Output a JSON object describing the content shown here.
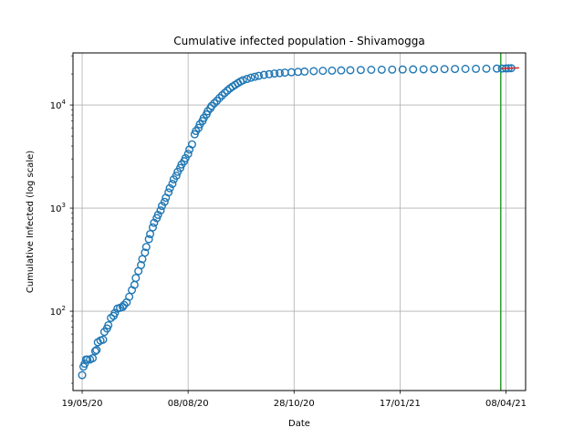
{
  "chart_data": {
    "type": "scatter",
    "title": "Cumulative infected population - Shivamogga",
    "xlabel": "Date",
    "ylabel": "Cumulative Infected (log scale)",
    "y_scale": "log",
    "ylim": [
      17,
      32000
    ],
    "xlim": [
      "2020-05-12",
      "2021-04-23"
    ],
    "grid": true,
    "x_ticks": [
      {
        "date": "2020-05-19",
        "label": "19/05/20"
      },
      {
        "date": "2020-08-08",
        "label": "08/08/20"
      },
      {
        "date": "2020-10-28",
        "label": "28/10/20"
      },
      {
        "date": "2021-01-17",
        "label": "17/01/21"
      },
      {
        "date": "2021-04-08",
        "label": "08/04/21"
      }
    ],
    "y_ticks": [
      {
        "value": 100,
        "label": "10",
        "exp": "2"
      },
      {
        "value": 1000,
        "label": "10",
        "exp": "3"
      },
      {
        "value": 10000,
        "label": "10",
        "exp": "4"
      }
    ],
    "series": [
      {
        "style": "open-circle",
        "color": "#1f77b4",
        "points": [
          [
            "2020-05-19",
            24
          ],
          [
            "2020-05-20",
            29
          ],
          [
            "2020-05-21",
            31
          ],
          [
            "2020-05-22",
            34
          ],
          [
            "2020-05-23",
            34
          ],
          [
            "2020-05-25",
            34
          ],
          [
            "2020-05-27",
            35
          ],
          [
            "2020-05-29",
            41
          ],
          [
            "2020-05-30",
            42
          ],
          [
            "2020-05-31",
            50
          ],
          [
            "2020-06-02",
            52
          ],
          [
            "2020-06-04",
            53
          ],
          [
            "2020-06-05",
            63
          ],
          [
            "2020-06-07",
            68
          ],
          [
            "2020-06-08",
            73
          ],
          [
            "2020-06-10",
            86
          ],
          [
            "2020-06-12",
            90
          ],
          [
            "2020-06-13",
            96
          ],
          [
            "2020-06-15",
            106
          ],
          [
            "2020-06-17",
            108
          ],
          [
            "2020-06-19",
            110
          ],
          [
            "2020-06-20",
            115
          ],
          [
            "2020-06-22",
            122
          ],
          [
            "2020-06-24",
            138
          ],
          [
            "2020-06-26",
            160
          ],
          [
            "2020-06-28",
            180
          ],
          [
            "2020-06-29",
            210
          ],
          [
            "2020-07-01",
            245
          ],
          [
            "2020-07-03",
            280
          ],
          [
            "2020-07-04",
            320
          ],
          [
            "2020-07-06",
            370
          ],
          [
            "2020-07-07",
            420
          ],
          [
            "2020-07-09",
            500
          ],
          [
            "2020-07-10",
            560
          ],
          [
            "2020-07-12",
            650
          ],
          [
            "2020-07-13",
            720
          ],
          [
            "2020-07-15",
            800
          ],
          [
            "2020-07-16",
            860
          ],
          [
            "2020-07-18",
            950
          ],
          [
            "2020-07-19",
            1050
          ],
          [
            "2020-07-21",
            1150
          ],
          [
            "2020-07-22",
            1260
          ],
          [
            "2020-07-24",
            1420
          ],
          [
            "2020-07-25",
            1560
          ],
          [
            "2020-07-27",
            1720
          ],
          [
            "2020-07-28",
            1900
          ],
          [
            "2020-07-30",
            2060
          ],
          [
            "2020-07-31",
            2250
          ],
          [
            "2020-08-02",
            2450
          ],
          [
            "2020-08-03",
            2650
          ],
          [
            "2020-08-05",
            2850
          ],
          [
            "2020-08-06",
            3050
          ],
          [
            "2020-08-08",
            3350
          ],
          [
            "2020-08-09",
            3700
          ],
          [
            "2020-08-11",
            4150
          ],
          [
            "2020-08-13",
            5200
          ],
          [
            "2020-08-14",
            5600
          ],
          [
            "2020-08-16",
            6000
          ],
          [
            "2020-08-17",
            6500
          ],
          [
            "2020-08-19",
            7000
          ],
          [
            "2020-08-20",
            7500
          ],
          [
            "2020-08-22",
            8100
          ],
          [
            "2020-08-23",
            8700
          ],
          [
            "2020-08-25",
            9300
          ],
          [
            "2020-08-26",
            9800
          ],
          [
            "2020-08-28",
            10400
          ],
          [
            "2020-08-30",
            11000
          ],
          [
            "2020-09-01",
            11700
          ],
          [
            "2020-09-03",
            12400
          ],
          [
            "2020-09-05",
            13100
          ],
          [
            "2020-09-07",
            13800
          ],
          [
            "2020-09-09",
            14500
          ],
          [
            "2020-09-11",
            15100
          ],
          [
            "2020-09-13",
            15700
          ],
          [
            "2020-09-15",
            16300
          ],
          [
            "2020-09-17",
            16900
          ],
          [
            "2020-09-19",
            17400
          ],
          [
            "2020-09-22",
            17900
          ],
          [
            "2020-09-25",
            18400
          ],
          [
            "2020-09-28",
            18800
          ],
          [
            "2020-10-01",
            19200
          ],
          [
            "2020-10-05",
            19600
          ],
          [
            "2020-10-09",
            19900
          ],
          [
            "2020-10-13",
            20200
          ],
          [
            "2020-10-17",
            20400
          ],
          [
            "2020-10-21",
            20600
          ],
          [
            "2020-10-26",
            20800
          ],
          [
            "2020-10-31",
            20950
          ],
          [
            "2020-11-05",
            21100
          ],
          [
            "2020-11-12",
            21300
          ],
          [
            "2020-11-19",
            21450
          ],
          [
            "2020-11-26",
            21550
          ],
          [
            "2020-12-03",
            21650
          ],
          [
            "2020-12-10",
            21750
          ],
          [
            "2020-12-18",
            21850
          ],
          [
            "2020-12-26",
            21950
          ],
          [
            "2021-01-03",
            22000
          ],
          [
            "2021-01-11",
            22050
          ],
          [
            "2021-01-19",
            22100
          ],
          [
            "2021-01-27",
            22150
          ],
          [
            "2021-02-04",
            22200
          ],
          [
            "2021-02-12",
            22250
          ],
          [
            "2021-02-20",
            22300
          ],
          [
            "2021-02-28",
            22350
          ],
          [
            "2021-03-08",
            22400
          ],
          [
            "2021-03-16",
            22450
          ],
          [
            "2021-03-24",
            22500
          ],
          [
            "2021-04-01",
            22550
          ],
          [
            "2021-04-05",
            22600
          ],
          [
            "2021-04-08",
            22650
          ],
          [
            "2021-04-10",
            22700
          ],
          [
            "2021-04-12",
            22750
          ]
        ]
      },
      {
        "style": "line",
        "color": "#d62728",
        "points": [
          [
            "2021-04-04",
            22600
          ],
          [
            "2021-04-18",
            22900
          ]
        ]
      }
    ],
    "vline": {
      "date": "2021-04-04",
      "color": "#2ca02c"
    }
  }
}
